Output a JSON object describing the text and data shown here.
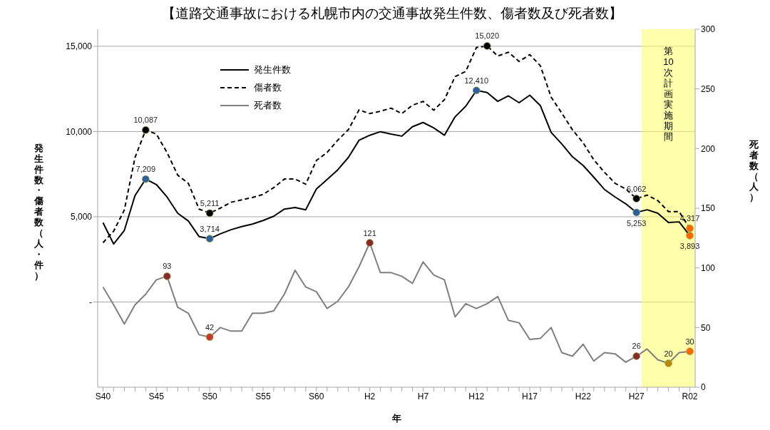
{
  "chart_data": {
    "type": "line",
    "title": "【道路交通事故における札幌市内の交通事故発生件数、傷者数及び死者数】",
    "xlabel": "年",
    "ylabel": "発生件数・傷者数（人・件）",
    "y2label": "死者数（人）",
    "categories": [
      "S40",
      null,
      null,
      null,
      null,
      "S45",
      null,
      null,
      null,
      null,
      "S50",
      null,
      null,
      null,
      null,
      "S55",
      null,
      null,
      null,
      null,
      "S60",
      null,
      null,
      null,
      null,
      "H2",
      null,
      null,
      null,
      null,
      "H7",
      null,
      null,
      null,
      null,
      "H12",
      null,
      null,
      null,
      null,
      "H17",
      null,
      null,
      null,
      null,
      "H22",
      null,
      null,
      null,
      null,
      "H27",
      null,
      null,
      null,
      null,
      "R02"
    ],
    "ylim": [
      -5000,
      16000
    ],
    "yticks": [
      {
        "value": 0,
        "label": "-"
      },
      {
        "value": 5000,
        "label": "5,000"
      },
      {
        "value": 10000,
        "label": "10,000"
      },
      {
        "value": 15000,
        "label": "15,000"
      }
    ],
    "y2lim": [
      0,
      300
    ],
    "y2ticks": [
      0,
      50,
      100,
      150,
      200,
      250,
      300
    ],
    "grid": "y",
    "legend": "top left",
    "bands": [
      {
        "axis": "x",
        "from": "H27",
        "to": "R02",
        "label": "第10次計画実施期間",
        "color": "#ffff66"
      }
    ],
    "series": [
      {
        "name": "発生件数",
        "color": "#000000",
        "line_style": "solid",
        "values": [
          4650,
          3400,
          4200,
          6240,
          7209,
          6890,
          6160,
          5210,
          4750,
          3840,
          3714,
          4000,
          4240,
          4420,
          4570,
          4780,
          5030,
          5450,
          5540,
          5410,
          6630,
          7180,
          7750,
          8480,
          9490,
          9780,
          9990,
          9850,
          9730,
          10280,
          10530,
          10210,
          9780,
          10860,
          11480,
          12410,
          12290,
          11770,
          12090,
          11690,
          12130,
          11510,
          9950,
          9270,
          8520,
          8010,
          7320,
          6600,
          6160,
          5760,
          5253,
          5410,
          5210,
          4660,
          4700,
          3893
        ],
        "colors": [
          null,
          null,
          null,
          null,
          "#2e5e9e",
          null,
          null,
          null,
          null,
          null,
          "#2e5e9e",
          null,
          null,
          null,
          null,
          null,
          null,
          null,
          null,
          null,
          null,
          null,
          null,
          null,
          null,
          null,
          null,
          null,
          null,
          null,
          null,
          null,
          null,
          null,
          null,
          "#2e5e9e",
          null,
          null,
          null,
          null,
          null,
          null,
          null,
          null,
          null,
          null,
          null,
          null,
          null,
          null,
          "#2e5e9e",
          null,
          null,
          null,
          null,
          "#ff6600"
        ],
        "value_labels": [
          null,
          null,
          null,
          null,
          "7,209",
          null,
          null,
          null,
          null,
          null,
          "3,714",
          null,
          null,
          null,
          null,
          null,
          null,
          null,
          null,
          null,
          null,
          null,
          null,
          null,
          null,
          null,
          null,
          null,
          null,
          null,
          null,
          null,
          null,
          null,
          null,
          "12,410",
          null,
          null,
          null,
          null,
          null,
          null,
          null,
          null,
          null,
          null,
          null,
          null,
          null,
          null,
          "5,253",
          null,
          null,
          null,
          null,
          "3,893"
        ]
      },
      {
        "name": "傷者数",
        "color": "#000000",
        "line_style": "dashed",
        "values": [
          3480,
          4160,
          5400,
          8480,
          10087,
          9850,
          8770,
          7440,
          6960,
          5450,
          5211,
          5510,
          5850,
          5990,
          6130,
          6310,
          6710,
          7210,
          7210,
          6910,
          8300,
          8770,
          9490,
          10110,
          11270,
          11050,
          11190,
          11370,
          11050,
          11540,
          11770,
          11250,
          11870,
          13220,
          13530,
          14930,
          15020,
          14430,
          14650,
          14110,
          14510,
          13850,
          12020,
          11080,
          10100,
          9340,
          8340,
          7610,
          6960,
          6630,
          6062,
          6270,
          5950,
          5300,
          5300,
          4317
        ],
        "colors": [
          null,
          null,
          null,
          null,
          "#000000",
          null,
          null,
          null,
          null,
          null,
          "#000000",
          null,
          null,
          null,
          null,
          null,
          null,
          null,
          null,
          null,
          null,
          null,
          null,
          null,
          null,
          null,
          null,
          null,
          null,
          null,
          null,
          null,
          null,
          null,
          null,
          null,
          "#000000",
          null,
          null,
          null,
          null,
          null,
          null,
          null,
          null,
          null,
          null,
          null,
          null,
          null,
          "#000000",
          null,
          null,
          null,
          null,
          "#ff6600"
        ],
        "value_labels": [
          null,
          null,
          null,
          null,
          "10,087",
          null,
          null,
          null,
          null,
          null,
          "5,211",
          null,
          null,
          null,
          null,
          null,
          null,
          null,
          null,
          null,
          null,
          null,
          null,
          null,
          null,
          null,
          null,
          null,
          null,
          null,
          null,
          null,
          null,
          null,
          null,
          null,
          "15,020",
          null,
          null,
          null,
          null,
          null,
          null,
          null,
          null,
          null,
          null,
          null,
          null,
          null,
          "6,062",
          null,
          null,
          null,
          null,
          "4,317"
        ]
      },
      {
        "name": "死者数",
        "color": "#7f7f7f",
        "line_style": "solid",
        "axis": "y2",
        "values": [
          84,
          69,
          53,
          69,
          78,
          90,
          93,
          67,
          62,
          44,
          42,
          50,
          47,
          47,
          62,
          62,
          64,
          78,
          98,
          84,
          80,
          66,
          72,
          84,
          101,
          121,
          96,
          96,
          93,
          87,
          105,
          94,
          90,
          59,
          70,
          66,
          70,
          76,
          56,
          54,
          40,
          41,
          50,
          29,
          26,
          36,
          22,
          29,
          28,
          21,
          26,
          32,
          23,
          20,
          29,
          30
        ],
        "colors": [
          null,
          null,
          null,
          null,
          null,
          null,
          "#8b2a2a",
          null,
          null,
          null,
          "#c0392b",
          null,
          null,
          null,
          null,
          null,
          null,
          null,
          null,
          null,
          null,
          null,
          null,
          null,
          null,
          "#8b2a2a",
          null,
          null,
          null,
          null,
          null,
          null,
          null,
          null,
          null,
          null,
          null,
          null,
          null,
          null,
          null,
          null,
          null,
          null,
          null,
          null,
          null,
          null,
          null,
          null,
          "#8b2a2a",
          null,
          null,
          "#b8860b",
          null,
          "#ff6600"
        ],
        "value_labels": [
          null,
          null,
          null,
          null,
          null,
          null,
          "93",
          null,
          null,
          null,
          "42",
          null,
          null,
          null,
          null,
          null,
          null,
          null,
          null,
          null,
          null,
          null,
          null,
          null,
          null,
          "121",
          null,
          null,
          null,
          null,
          null,
          null,
          null,
          null,
          null,
          null,
          null,
          null,
          null,
          null,
          null,
          null,
          null,
          null,
          null,
          null,
          null,
          null,
          null,
          null,
          "26",
          null,
          null,
          "20",
          null,
          "30"
        ]
      }
    ]
  }
}
